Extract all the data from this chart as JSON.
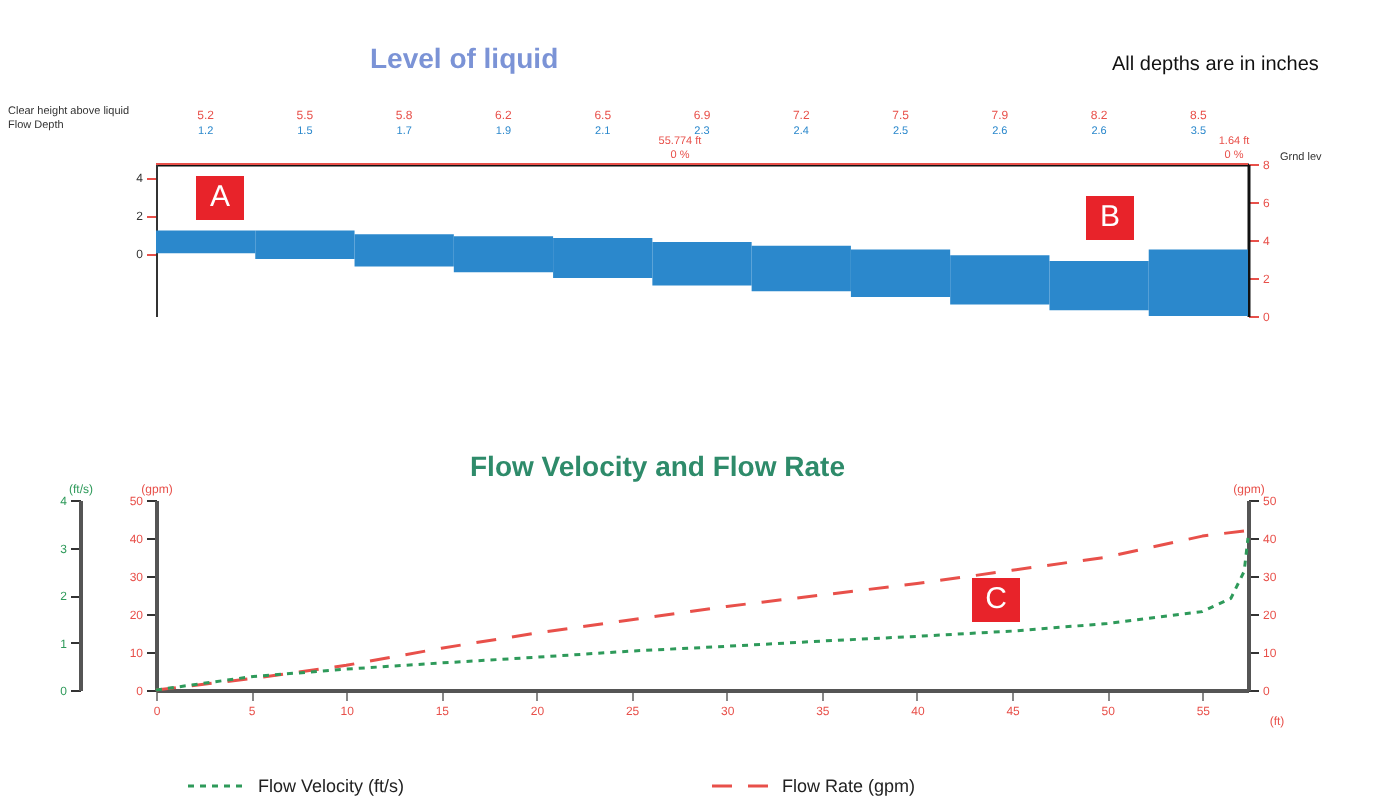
{
  "chart_data": [
    {
      "type": "bar",
      "title": "Level of liquid",
      "categories": [
        "5.2",
        "5.5",
        "5.8",
        "6.2",
        "6.5",
        "6.9",
        "7.2",
        "7.5",
        "7.9",
        "8.2",
        "8.5"
      ],
      "values": [
        1.2,
        1.5,
        1.7,
        1.9,
        2.1,
        2.3,
        2.4,
        2.5,
        2.6,
        2.6,
        3.5
      ],
      "base": [
        3.3,
        3.0,
        2.6,
        2.3,
        2.0,
        1.6,
        1.3,
        1.0,
        0.6,
        0.3,
        0
      ],
      "color": "#2b88cc",
      "data_labels": true,
      "ylim": [
        0,
        8
      ],
      "yticks": [
        0,
        2,
        4,
        6,
        8
      ],
      "y2lim": [
        -3.3,
        4.7
      ],
      "y2ticks": [
        0,
        2,
        4
      ],
      "ref_lines": [
        {
          "axis": "y",
          "value": 8,
          "label": "Grnd lev",
          "color": "#e8504a"
        }
      ],
      "annotations": [
        "All depths are in inches",
        "Clear height above liquid",
        "Flow Depth",
        "55.774 ft",
        "0 %",
        "1.64 ft",
        "0 %",
        "A",
        "B"
      ]
    },
    {
      "type": "line",
      "title": "Flow Velocity and Flow Rate",
      "xlabel": "(ft)",
      "ylabel": "(gpm)",
      "y2label": "(gpm)",
      "y3label": "(ft/s)",
      "xlim": [
        0,
        57.4
      ],
      "xticks": [
        0,
        5,
        10,
        15,
        20,
        25,
        30,
        35,
        40,
        45,
        50,
        55
      ],
      "ylim": [
        0,
        50
      ],
      "yticks": [
        0,
        10,
        20,
        30,
        40,
        50
      ],
      "y2lim": [
        0,
        50
      ],
      "y2ticks": [
        0,
        10,
        20,
        30,
        40,
        50
      ],
      "y3lim": [
        0,
        4
      ],
      "y3ticks": [
        0,
        1,
        2,
        3,
        4
      ],
      "legend": "bottom",
      "series": [
        {
          "name": "Flow Velocity (ft/s)",
          "color": "#2e9a5a",
          "axis": "y3",
          "line_style": "dotted",
          "x": [
            0,
            5,
            10,
            15,
            20,
            25,
            30,
            35,
            40,
            45,
            50,
            55,
            56.5,
            57.2,
            57.4
          ],
          "values": [
            0,
            0.28,
            0.44,
            0.57,
            0.69,
            0.82,
            0.92,
            1.03,
            1.13,
            1.24,
            1.4,
            1.65,
            1.93,
            2.5,
            3.2
          ]
        },
        {
          "name": "Flow Rate (gpm)",
          "color": "#e8504a",
          "axis": "y",
          "line_style": "dashed",
          "x": [
            0,
            5,
            10,
            15,
            20,
            25,
            30,
            35,
            40,
            45,
            50,
            55,
            57.4
          ],
          "values": [
            0,
            3,
            6.5,
            11,
            15,
            18.5,
            22,
            25,
            28,
            31.5,
            35,
            40.5,
            42
          ]
        }
      ],
      "annotations": [
        "C"
      ]
    }
  ]
}
